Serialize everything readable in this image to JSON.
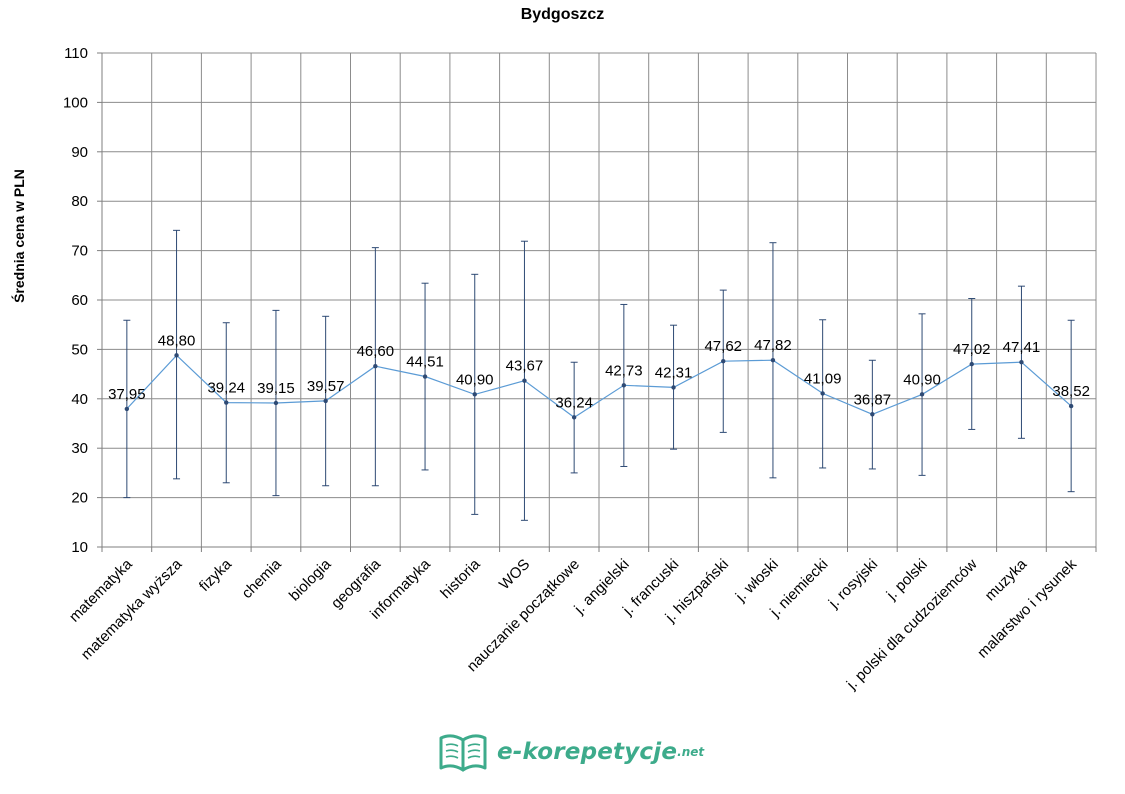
{
  "colors": {
    "line": "#5b9bd5",
    "marker": "#2e4a74",
    "errorbar": "#2e4a74",
    "grid": "#8c8c8c",
    "logo": "#3dab8b"
  },
  "logo": {
    "icon": "open-book-icon",
    "text": "e-korepetycje",
    "suffix": ".net"
  },
  "chart_data": {
    "type": "line",
    "title": "Bydgoszcz",
    "xlabel": "",
    "ylabel": "Średnia cena w PLN",
    "ylim": [
      10,
      110
    ],
    "yticks": [
      10,
      20,
      30,
      40,
      50,
      60,
      70,
      80,
      90,
      100,
      110
    ],
    "grid": true,
    "legend": "none",
    "categories": [
      "matematyka",
      "matematyka wyższa",
      "fizyka",
      "chemia",
      "biologia",
      "geografia",
      "informatyka",
      "historia",
      "WOS",
      "nauczanie początkowe",
      "j. angielski",
      "j. francuski",
      "j. hiszpański",
      "j. włoski",
      "j. niemiecki",
      "j. rosyjski",
      "j. polski",
      "j. polski dla cudzoziemców",
      "muzyka",
      "malarstwo i rysunek"
    ],
    "values": [
      37.95,
      48.8,
      39.24,
      39.15,
      39.57,
      46.6,
      44.51,
      40.9,
      43.67,
      36.24,
      42.73,
      42.31,
      47.62,
      47.82,
      41.09,
      36.87,
      40.9,
      47.02,
      47.41,
      38.52
    ],
    "data_labels": [
      "37,95",
      "48,80",
      "39,24",
      "39,15",
      "39,57",
      "46,60",
      "44,51",
      "40,90",
      "43,67",
      "36,24",
      "42,73",
      "42,31",
      "47,62",
      "47,82",
      "41,09",
      "36,87",
      "40,90",
      "47,02",
      "47,41",
      "38,52"
    ],
    "error_low": [
      20.0,
      23.8,
      23.0,
      20.4,
      22.4,
      22.4,
      25.6,
      16.6,
      15.4,
      25.0,
      26.3,
      29.8,
      33.2,
      24.0,
      26.0,
      25.8,
      24.5,
      33.8,
      32.0,
      21.2
    ],
    "error_high": [
      55.9,
      74.1,
      55.4,
      57.9,
      56.7,
      70.6,
      63.4,
      65.2,
      71.9,
      47.4,
      59.1,
      54.9,
      62.0,
      71.6,
      56.0,
      47.8,
      57.2,
      60.3,
      62.8,
      55.9
    ]
  }
}
